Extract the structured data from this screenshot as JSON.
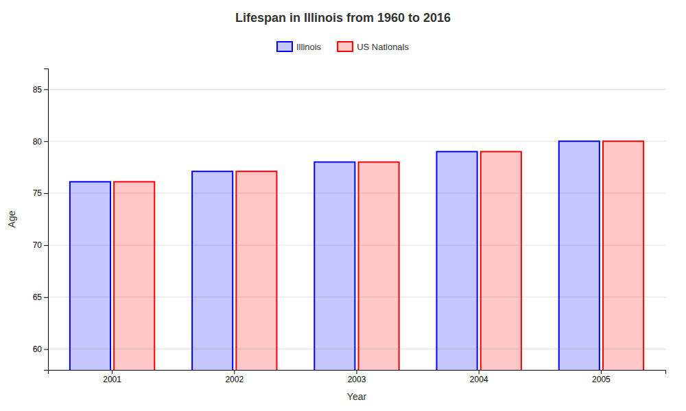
{
  "chart_data": {
    "type": "bar",
    "title": "Lifespan in Illinois from 1960 to 2016",
    "x_label": "Year",
    "y_label": "Age",
    "categories": [
      "2001",
      "2002",
      "2003",
      "2004",
      "2005"
    ],
    "series": [
      {
        "name": "Illinois",
        "color": "#0000ff",
        "values": [
          76.1,
          77.1,
          78.0,
          79.0,
          80.0
        ]
      },
      {
        "name": "US Nationals",
        "color": "#ff0000",
        "values": [
          76.1,
          77.1,
          78.0,
          79.0,
          80.0
        ]
      }
    ],
    "ylim": [
      58,
      87
    ],
    "yticks": [
      60,
      65,
      70,
      75,
      80,
      85
    ],
    "grid": true,
    "legend": "top"
  }
}
